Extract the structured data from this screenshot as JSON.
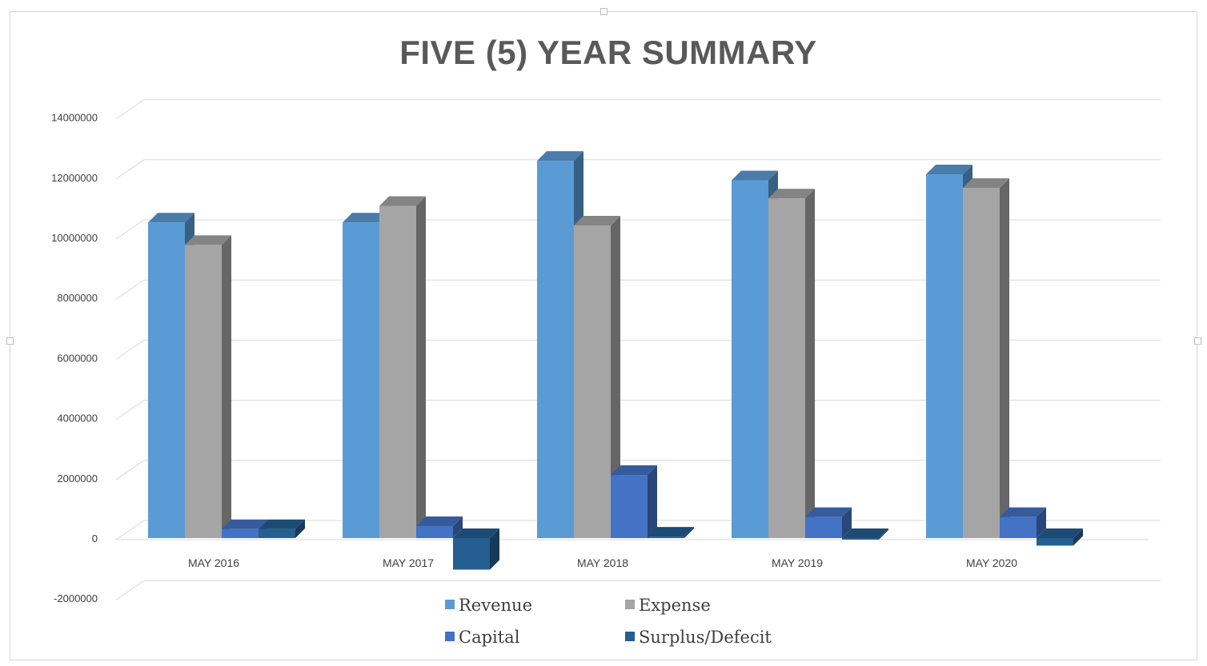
{
  "colors": {
    "revenue": "#5b9bd5",
    "expense": "#a5a5a5",
    "capital": "#4472c4",
    "surplus": "#255e91",
    "grid": "#d9d9d9"
  },
  "chart_data": {
    "type": "bar",
    "title": "FIVE (5) YEAR SUMMARY",
    "xlabel": "",
    "ylabel": "",
    "categories": [
      "MAY 2016",
      "MAY 2017",
      "MAY 2018",
      "MAY 2019",
      "MAY 2020"
    ],
    "series": [
      {
        "name": "Revenue",
        "values": [
          10500000,
          10500000,
          12550000,
          11900000,
          12100000
        ]
      },
      {
        "name": "Expense",
        "values": [
          9750000,
          11050000,
          10400000,
          11300000,
          11650000
        ]
      },
      {
        "name": "Capital",
        "values": [
          300000,
          400000,
          2100000,
          700000,
          700000
        ]
      },
      {
        "name": "Surplus/Defecit",
        "values": [
          300000,
          -1050000,
          50000,
          -50000,
          -250000
        ]
      }
    ],
    "ylim": [
      -2000000,
      14000000
    ],
    "yticks": [
      "-2000000",
      "0",
      "2000000",
      "4000000",
      "6000000",
      "8000000",
      "10000000",
      "12000000",
      "14000000"
    ],
    "ytick_values": [
      -2000000,
      0,
      2000000,
      4000000,
      6000000,
      8000000,
      10000000,
      12000000,
      14000000
    ],
    "grid": true,
    "legend_position": "bottom",
    "style": "3d-clustered-column"
  }
}
